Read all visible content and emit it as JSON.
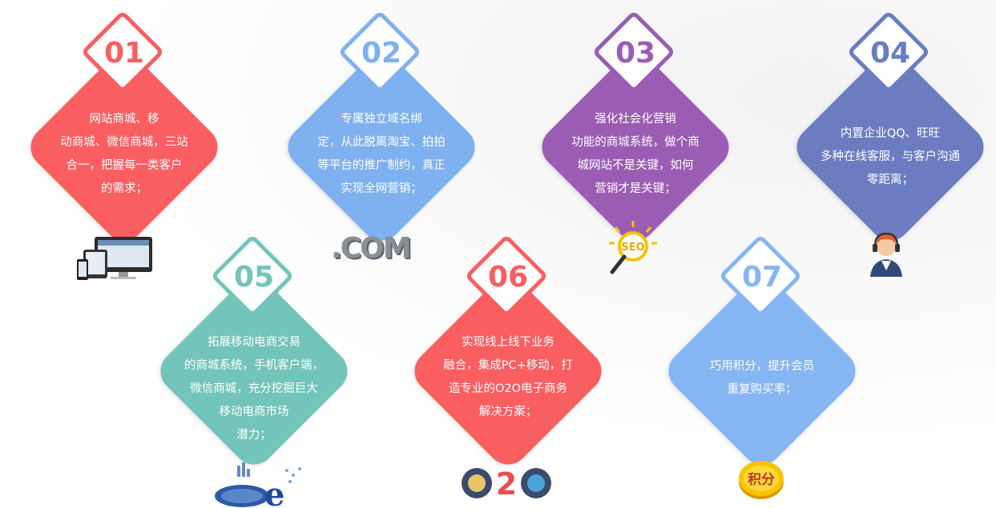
{
  "colors": {
    "red": "#f95e61",
    "blue": "#7fb1f0",
    "purple": "#9b5db3",
    "indigo": "#6b7dc0",
    "teal": "#73c4ba",
    "lightblue": "#86b5f3"
  },
  "items": [
    {
      "num": "01",
      "color": "#f95e61",
      "lines": [
        "网站商城、移",
        "动商城、微信商城，三站",
        "合一，把握每一类客户",
        "的需求；"
      ],
      "icon": "devices-icon"
    },
    {
      "num": "02",
      "color": "#7fb1f0",
      "lines": [
        "专属独立域名绑",
        "定，从此脱离淘宝、拍拍",
        "等平台的推广制约，真正",
        "实现全网营销；"
      ],
      "icon": "dotcom-icon",
      "icon_text": ".COM"
    },
    {
      "num": "03",
      "color": "#9b5db3",
      "lines": [
        "强化社会化营销",
        "功能的商城系统，做个商",
        "城网站不是关键，如何",
        "营销才是关键；"
      ],
      "icon": "seo-magnifier-icon",
      "icon_text": "SEO"
    },
    {
      "num": "04",
      "color": "#6b7dc0",
      "lines": [
        "内置企业QQ、旺旺",
        "多种在线客服，与客户沟通",
        "零距离；"
      ],
      "icon": "customer-service-icon"
    },
    {
      "num": "05",
      "color": "#73c4ba",
      "lines": [
        "拓展移动电商交易",
        "的商城系统，手机客户端，",
        "微信商城，充分挖掘巨大",
        "移动电商市场",
        "潜力；"
      ],
      "icon": "ie-globe-icon"
    },
    {
      "num": "06",
      "color": "#f95e61",
      "lines": [
        "实现线上线下业务",
        "融合，集成PC+移动，打",
        "造专业的O2O电子商务",
        "解决方案；"
      ],
      "icon": "o2o-icon",
      "icon_text": "O2O"
    },
    {
      "num": "07",
      "color": "#86b5f3",
      "lines": [
        "巧用积分，提升会员",
        "重复购买率；"
      ],
      "icon": "points-coin-icon",
      "icon_text": "积分"
    }
  ]
}
